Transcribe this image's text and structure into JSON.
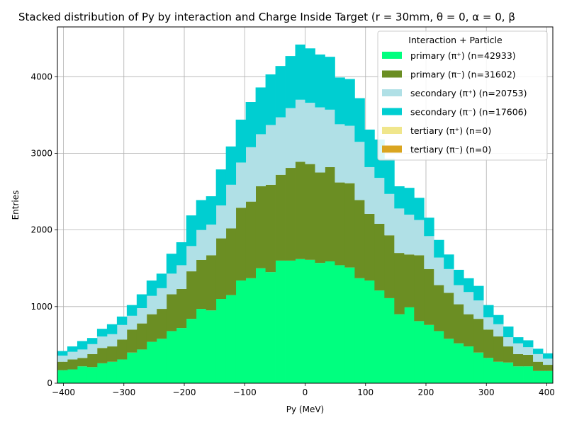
{
  "chart_data": {
    "type": "bar",
    "stacked": true,
    "title": "Stacked distribution of Py by interaction and Charge Inside Target (r = 30mm, θ = 0, α = 0, β",
    "xlabel": "Py (MeV)",
    "ylabel": "Entries",
    "xlim": [
      -410,
      410
    ],
    "ylim": [
      0,
      4650
    ],
    "x_ticks": [
      -400,
      -300,
      -200,
      -100,
      0,
      100,
      200,
      300,
      400
    ],
    "y_ticks": [
      0,
      1000,
      2000,
      3000,
      4000
    ],
    "grid": true,
    "legend": {
      "title": "Interaction + Particle",
      "placement": "top-right"
    },
    "bin_edges": [
      -410,
      -393.6,
      -377.2,
      -360.8,
      -344.4,
      -328,
      -311.6,
      -295.2,
      -278.8,
      -262.4,
      -246,
      -229.6,
      -213.2,
      -196.8,
      -180.4,
      -164,
      -147.6,
      -131.2,
      -114.8,
      -98.4,
      -82,
      -65.6,
      -49.2,
      -32.8,
      -16.4,
      0,
      16.4,
      32.8,
      49.2,
      65.6,
      82,
      98.4,
      114.8,
      131.2,
      147.6,
      164,
      180.4,
      196.8,
      213.2,
      229.6,
      246,
      262.4,
      278.8,
      295.2,
      311.6,
      328,
      344.4,
      360.8,
      377.2,
      393.6,
      410
    ],
    "series": [
      {
        "name": "primary (π⁺) (n=42933)",
        "color": "#00ff7f",
        "values": [
          170,
          180,
          220,
          210,
          260,
          280,
          310,
          400,
          440,
          540,
          580,
          680,
          720,
          840,
          970,
          950,
          1100,
          1150,
          1340,
          1370,
          1500,
          1450,
          1600,
          1600,
          1620,
          1610,
          1570,
          1590,
          1540,
          1510,
          1370,
          1340,
          1210,
          1110,
          900,
          990,
          810,
          760,
          680,
          580,
          520,
          480,
          400,
          330,
          280,
          270,
          220,
          220,
          160,
          160
        ]
      },
      {
        "name": "primary (π⁻) (n=31602)",
        "color": "#6b8e23",
        "values": [
          110,
          130,
          110,
          170,
          200,
          200,
          260,
          300,
          340,
          360,
          390,
          480,
          510,
          620,
          640,
          720,
          790,
          870,
          950,
          1000,
          1070,
          1140,
          1120,
          1210,
          1270,
          1250,
          1180,
          1230,
          1080,
          1100,
          1020,
          870,
          870,
          820,
          800,
          690,
          860,
          730,
          600,
          600,
          510,
          420,
          440,
          370,
          330,
          210,
          160,
          150,
          120,
          80
        ]
      },
      {
        "name": "secondary (π⁺) (n=20753)",
        "color": "#b0e0e6",
        "values": [
          80,
          100,
          110,
          130,
          150,
          160,
          190,
          180,
          200,
          240,
          270,
          270,
          310,
          330,
          390,
          400,
          430,
          570,
          590,
          710,
          680,
          780,
          750,
          780,
          810,
          800,
          850,
          750,
          760,
          750,
          760,
          610,
          600,
          540,
          580,
          520,
          460,
          430,
          360,
          310,
          250,
          290,
          240,
          160,
          160,
          120,
          140,
          100,
          100,
          80
        ]
      },
      {
        "name": "secondary (π⁻) (n=17606)",
        "color": "#00ced1",
        "values": [
          60,
          70,
          110,
          80,
          100,
          130,
          110,
          140,
          180,
          200,
          190,
          260,
          300,
          400,
          390,
          370,
          470,
          500,
          560,
          590,
          610,
          660,
          670,
          680,
          720,
          710,
          690,
          690,
          610,
          610,
          570,
          490,
          500,
          460,
          290,
          350,
          290,
          240,
          230,
          190,
          200,
          180,
          190,
          160,
          120,
          140,
          80,
          90,
          70,
          70
        ]
      },
      {
        "name": "tertiary (π⁺) (n=0)",
        "color": "#f0e68c",
        "values": []
      },
      {
        "name": "tertiary (π⁻) (n=0)",
        "color": "#daa520",
        "values": []
      }
    ]
  }
}
